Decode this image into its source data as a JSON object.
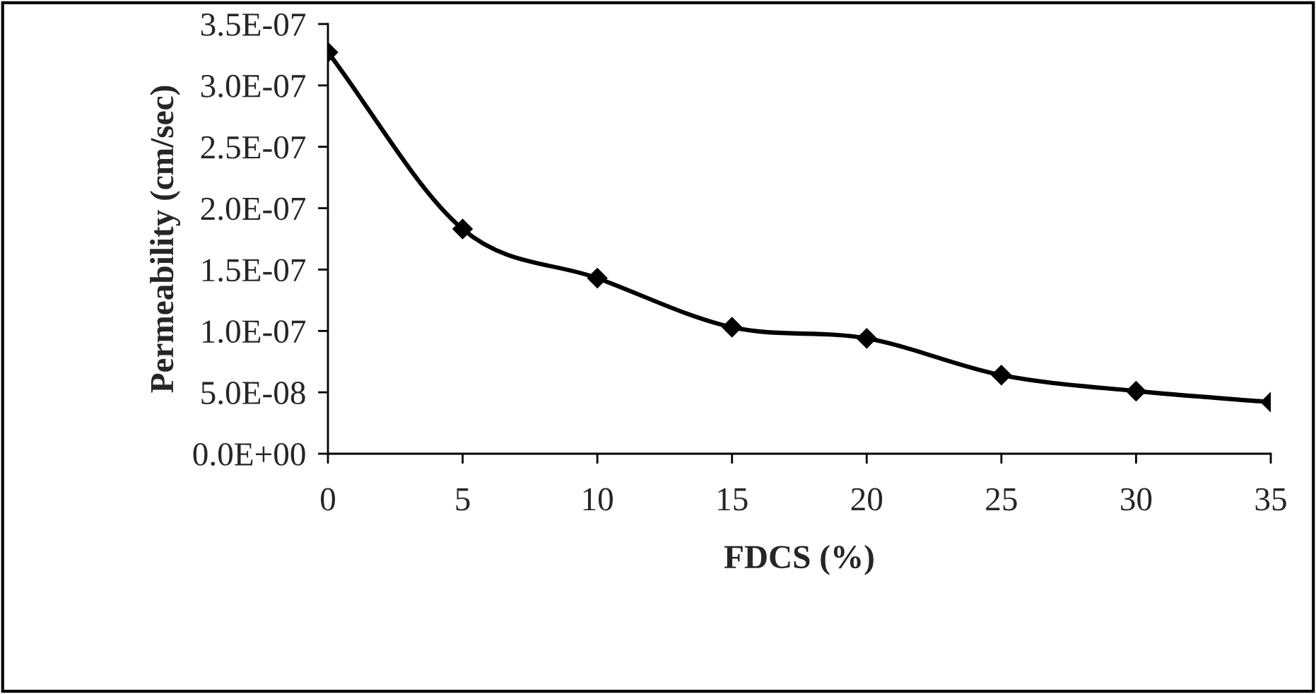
{
  "chart_data": {
    "type": "line",
    "xlabel": "FDCS (%)",
    "ylabel": "Permeability (cm/sec)",
    "x": [
      0,
      5,
      10,
      15,
      20,
      25,
      30,
      35
    ],
    "series": [
      {
        "color": "#000000",
        "values": [
          3.27e-07,
          1.83e-07,
          1.43e-07,
          1.03e-07,
          9.4e-08,
          6.4e-08,
          5.1e-08,
          4.2e-08
        ]
      }
    ],
    "xlim": [
      0,
      35
    ],
    "xticks": [
      0,
      5,
      10,
      15,
      20,
      25,
      30,
      35
    ],
    "ylim": [
      0,
      3.5e-07
    ],
    "yticks": [
      {
        "value": 0,
        "label": "0.0E+00"
      },
      {
        "value": 5e-08,
        "label": "5.0E-08"
      },
      {
        "value": 1e-07,
        "label": "1.0E-07"
      },
      {
        "value": 1.5e-07,
        "label": "1.5E-07"
      },
      {
        "value": 2e-07,
        "label": "2.0E-07"
      },
      {
        "value": 2.5e-07,
        "label": "2.5E-07"
      },
      {
        "value": 3e-07,
        "label": "3.0E-07"
      },
      {
        "value": 3.5e-07,
        "label": "3.5E-07"
      }
    ],
    "grid": false,
    "legend": false,
    "marker": "diamond",
    "line_style": "solid"
  }
}
